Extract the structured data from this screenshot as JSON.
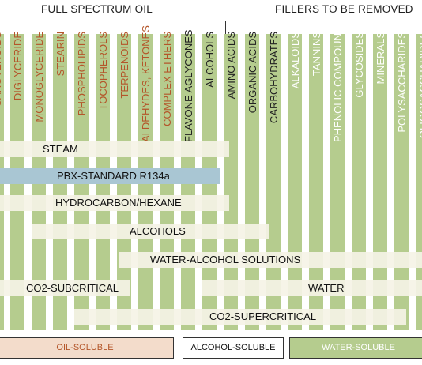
{
  "headers": {
    "left": "FULL SPECTRUM OIL",
    "right": "FILLERS TO BE REMOVED"
  },
  "columns": [
    {
      "label": "CAROTENOIDS",
      "group": "oil"
    },
    {
      "label": "DIGLYCERIDE",
      "group": "oil"
    },
    {
      "label": "MONOGLYCERIDE",
      "group": "oil"
    },
    {
      "label": "STEARIN",
      "group": "oil"
    },
    {
      "label": "PHOSPHOLIPIDS",
      "group": "oil"
    },
    {
      "label": "TOCOPHEROLS",
      "group": "oil"
    },
    {
      "label": "TERPENOIDS",
      "group": "oil"
    },
    {
      "label": "ALDEHYDES, KETONES",
      "group": "oil"
    },
    {
      "label": "COMPLEX ETHERS",
      "group": "oil"
    },
    {
      "label": "FLAVONE AGLYCONES",
      "group": "alcohol"
    },
    {
      "label": "ALCOHOLS",
      "group": "alcohol"
    },
    {
      "label": "AMINO ACIDS",
      "group": "alcohol"
    },
    {
      "label": "ORGANIC ACIDS",
      "group": "alcohol"
    },
    {
      "label": "CARBOHYDRATES",
      "group": "alcohol"
    },
    {
      "label": "ALKALOIDS",
      "group": "water"
    },
    {
      "label": "TANNINS",
      "group": "water"
    },
    {
      "label": "PHENOLIC COMPOUNDS",
      "group": "water"
    },
    {
      "label": "GLYCOSIDES",
      "group": "water"
    },
    {
      "label": "MINERALS",
      "group": "water"
    },
    {
      "label": "POLYSACCHARIDES",
      "group": "water"
    },
    {
      "label": "OLIGOSACCHARIDES",
      "group": "water"
    }
  ],
  "solvents": [
    {
      "label": "STEAM"
    },
    {
      "label": "PBX-STANDARD R134a",
      "highlight": true
    },
    {
      "label": "HYDROCARBON/HEXANE"
    },
    {
      "label": "ALCOHOLS"
    },
    {
      "label": "WATER-ALCOHOL SOLUTIONS"
    },
    {
      "label": "CO2-SUBCRITICAL"
    },
    {
      "label": "WATER"
    },
    {
      "label": "CO2-SUPERCRITICAL"
    }
  ],
  "categories": [
    {
      "label": "OIL-SOLUBLE"
    },
    {
      "label": "ALCOHOL-SOLUBLE"
    },
    {
      "label": "WATER-SOLUBLE"
    }
  ],
  "colors": {
    "oil_text": "#b4562a",
    "water_text": "#ffffff",
    "bar": "#b5cc8e",
    "band": "#f5f3e6",
    "highlight_band": "#a9c6d3",
    "oil_box_fill": "#f3dccb",
    "alcohol_box_fill": "#ffffff",
    "water_box_fill": "#b5cc8e"
  }
}
